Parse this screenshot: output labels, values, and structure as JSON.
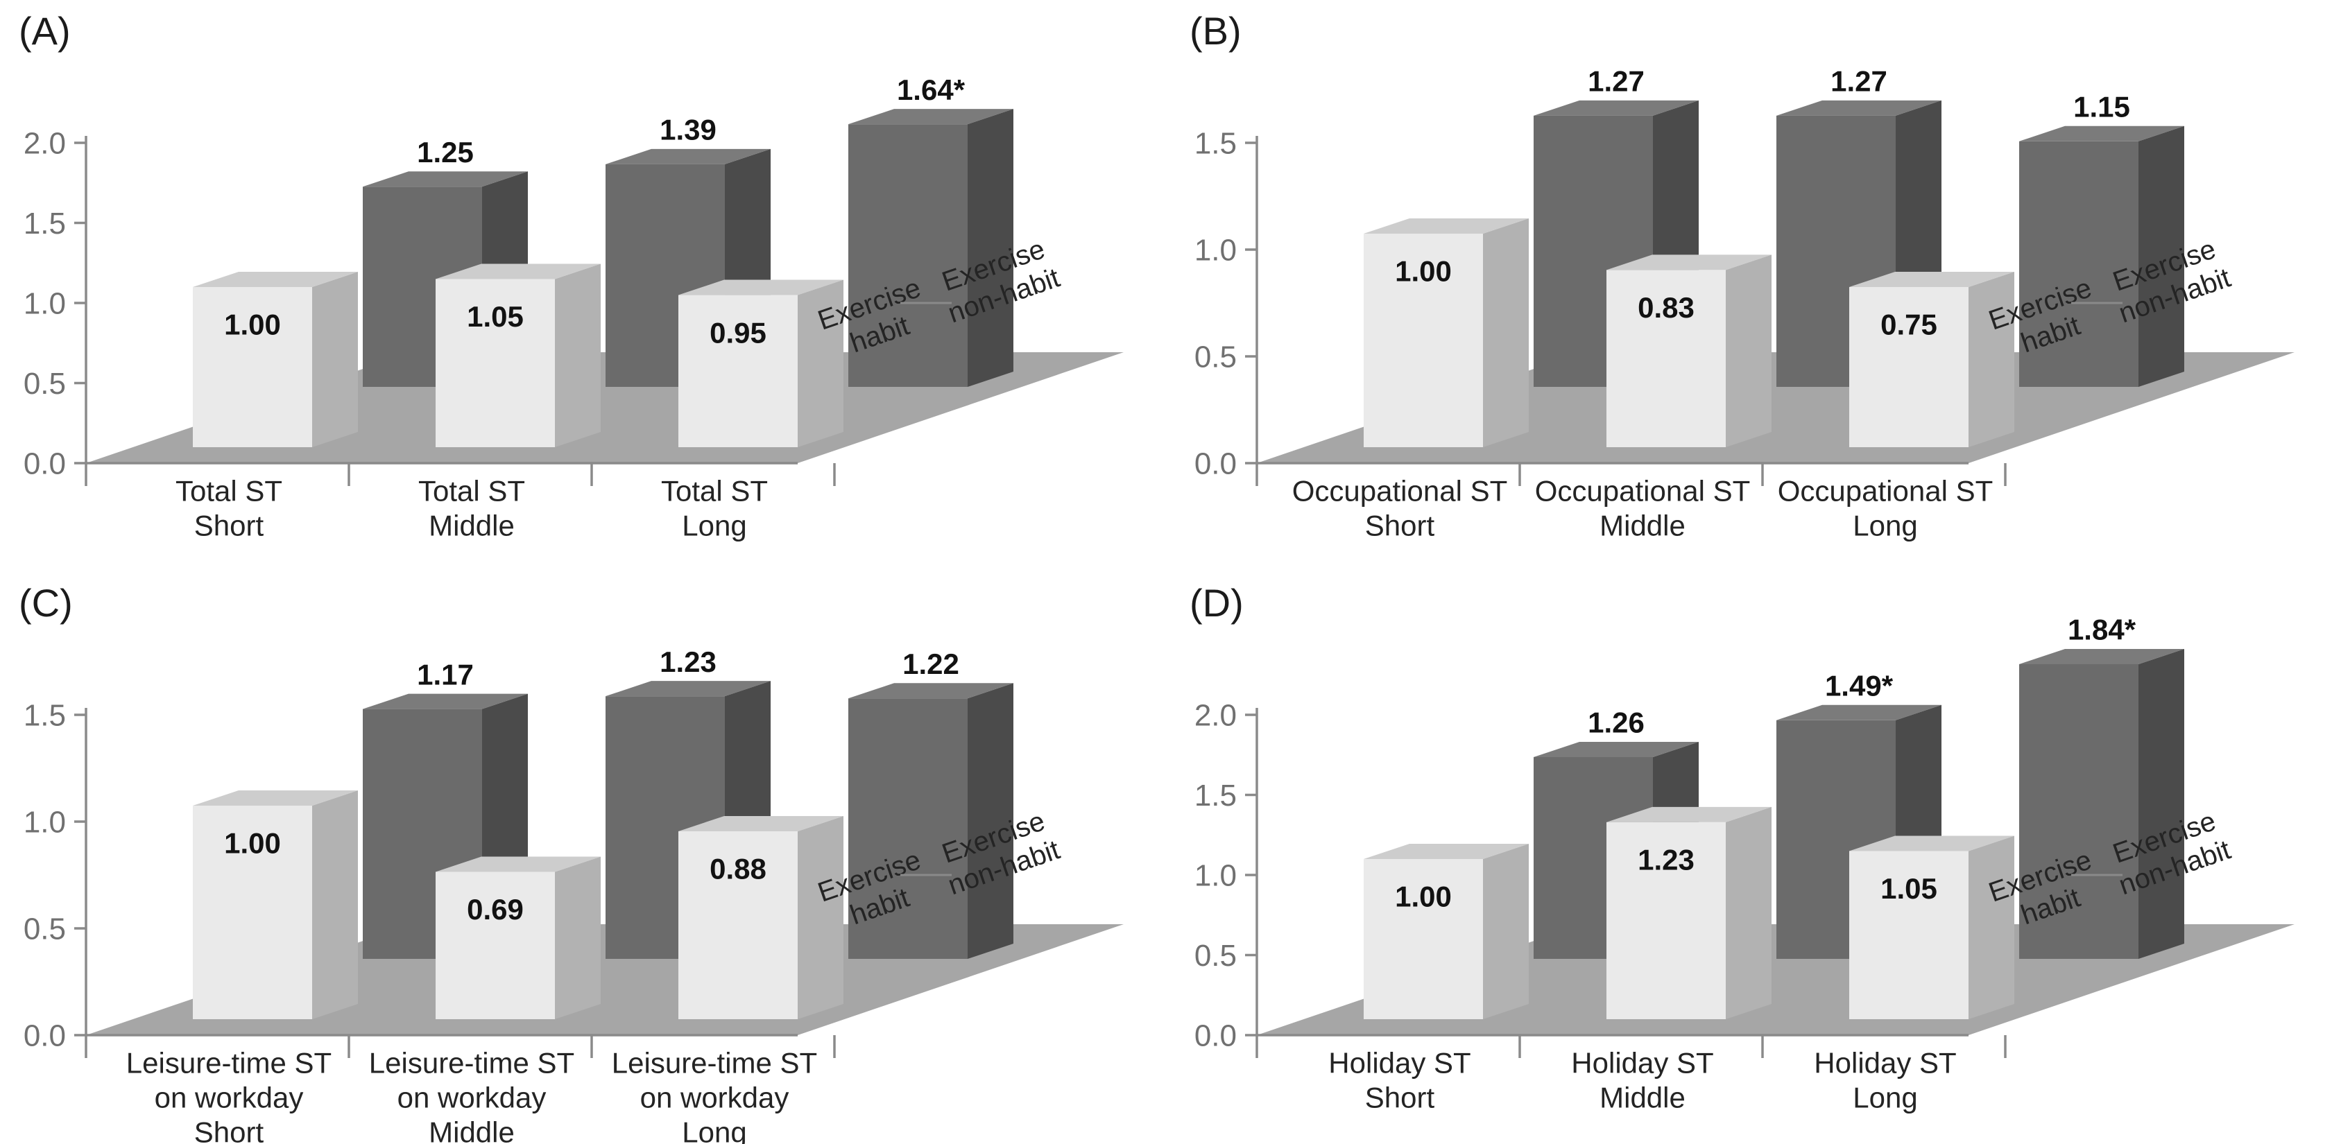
{
  "figure": {
    "background": "#ffffff",
    "series_axis": {
      "front_label_lines": [
        "Exercise",
        "habit"
      ],
      "back_label_lines": [
        "Exercise",
        "non-habit"
      ]
    },
    "colors": {
      "habit_front": "#eaeaea",
      "habit_top": "#cdcdcd",
      "habit_side": "#b2b2b2",
      "nonhabit_front": "#6b6b6b",
      "nonhabit_top": "#7b7b7b",
      "nonhabit_side": "#4b4b4b",
      "floor": "#a6a6a6",
      "axis": "#8a8a8a",
      "tick_label": "#707070",
      "value_label": "#121212",
      "category_label": "#242424",
      "panel_letter": "#1b1b1b"
    }
  },
  "chart_data": [
    {
      "type": "bar",
      "panel_letter": "(A)",
      "ylim": [
        0.0,
        2.0
      ],
      "y_ticks": [
        "0.0",
        "0.5",
        "1.0",
        "1.5",
        "2.0"
      ],
      "grid": false,
      "categories": [
        [
          "Total ST",
          "Short"
        ],
        [
          "Total ST",
          "Middle"
        ],
        [
          "Total ST",
          "Long"
        ]
      ],
      "series": [
        {
          "name": "Exercise habit",
          "values": [
            1.0,
            1.05,
            0.95
          ],
          "labels": [
            "1.00",
            "1.05",
            "0.95"
          ]
        },
        {
          "name": "Exercise non-habit",
          "values": [
            1.25,
            1.39,
            1.64
          ],
          "labels": [
            "1.25",
            "1.39",
            "1.64*"
          ]
        }
      ]
    },
    {
      "type": "bar",
      "panel_letter": "(B)",
      "ylim": [
        0.0,
        1.5
      ],
      "y_ticks": [
        "0.0",
        "0.5",
        "1.0",
        "1.5"
      ],
      "grid": false,
      "categories": [
        [
          "Occupational ST",
          "Short"
        ],
        [
          "Occupational ST",
          "Middle"
        ],
        [
          "Occupational ST",
          "Long"
        ]
      ],
      "series": [
        {
          "name": "Exercise habit",
          "values": [
            1.0,
            0.83,
            0.75
          ],
          "labels": [
            "1.00",
            "0.83",
            "0.75"
          ]
        },
        {
          "name": "Exercise non-habit",
          "values": [
            1.27,
            1.27,
            1.15
          ],
          "labels": [
            "1.27",
            "1.27",
            "1.15"
          ]
        }
      ]
    },
    {
      "type": "bar",
      "panel_letter": "(C)",
      "ylim": [
        0.0,
        1.5
      ],
      "y_ticks": [
        "0.0",
        "0.5",
        "1.0",
        "1.5"
      ],
      "grid": false,
      "categories": [
        [
          "Leisure-time ST",
          "on workday",
          "Short"
        ],
        [
          "Leisure-time ST",
          "on workday",
          "Middle"
        ],
        [
          "Leisure-time ST",
          "on workday",
          "Long"
        ]
      ],
      "series": [
        {
          "name": "Exercise habit",
          "values": [
            1.0,
            0.69,
            0.88
          ],
          "labels": [
            "1.00",
            "0.69",
            "0.88"
          ]
        },
        {
          "name": "Exercise non-habit",
          "values": [
            1.17,
            1.23,
            1.22
          ],
          "labels": [
            "1.17",
            "1.23",
            "1.22"
          ]
        }
      ]
    },
    {
      "type": "bar",
      "panel_letter": "(D)",
      "ylim": [
        0.0,
        2.0
      ],
      "y_ticks": [
        "0.0",
        "0.5",
        "1.0",
        "1.5",
        "2.0"
      ],
      "grid": false,
      "categories": [
        [
          "Holiday ST",
          "Short"
        ],
        [
          "Holiday ST",
          "Middle"
        ],
        [
          "Holiday ST",
          "Long"
        ]
      ],
      "series": [
        {
          "name": "Exercise habit",
          "values": [
            1.0,
            1.23,
            1.05
          ],
          "labels": [
            "1.00",
            "1.23",
            "1.05"
          ]
        },
        {
          "name": "Exercise non-habit",
          "values": [
            1.26,
            1.49,
            1.84
          ],
          "labels": [
            "1.26",
            "1.49*",
            "1.84*"
          ]
        }
      ]
    }
  ]
}
